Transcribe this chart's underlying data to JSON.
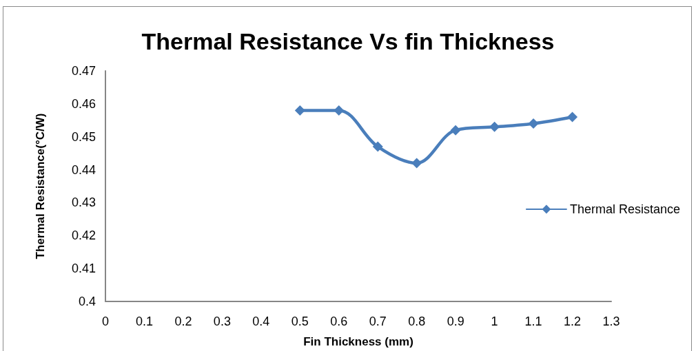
{
  "chart_data": {
    "type": "line",
    "title": "Thermal Resistance Vs fin Thickness",
    "xlabel": "Fin Thickness (mm)",
    "ylabel": "Thermal Resistance(°C/W)",
    "x": [
      0.5,
      0.6,
      0.7,
      0.8,
      0.9,
      1.0,
      1.1,
      1.2
    ],
    "series": [
      {
        "name": "Thermal Resistance",
        "color": "#4a7ebb",
        "values": [
          0.458,
          0.458,
          0.447,
          0.442,
          0.452,
          0.453,
          0.454,
          0.456
        ]
      }
    ],
    "xlim": [
      0,
      1.3
    ],
    "xticks": [
      0,
      0.1,
      0.2,
      0.3,
      0.4,
      0.5,
      0.6,
      0.7,
      0.8,
      0.9,
      1,
      1.1,
      1.2,
      1.3
    ],
    "ylim": [
      0.4,
      0.47
    ],
    "yticks": [
      0.4,
      0.41,
      0.42,
      0.43,
      0.44,
      0.45,
      0.46,
      0.47
    ],
    "grid": false,
    "legend": "right",
    "marker": "diamond",
    "line_style": "solid"
  }
}
